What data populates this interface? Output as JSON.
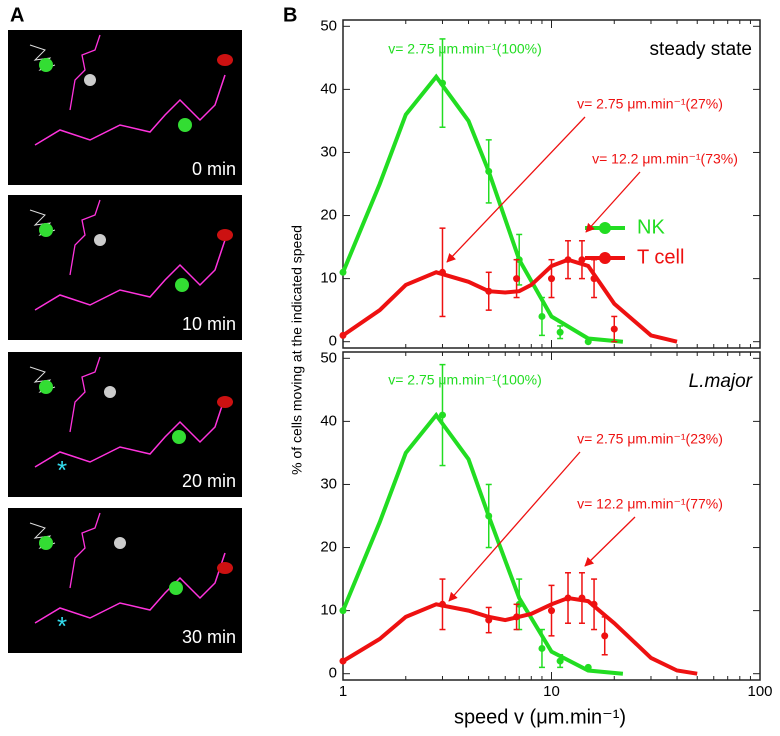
{
  "figure": {
    "panel_labels": [
      "A",
      "B"
    ],
    "xlabel": "speed v (μm.min⁻¹)",
    "ylabel": "% of cells moving at the indicated speed"
  },
  "panel_a": {
    "time_labels": [
      "0 min",
      "10 min",
      "20 min",
      "30 min"
    ]
  },
  "chart_data": [
    {
      "type": "line",
      "label": "steady state",
      "label_italic": false,
      "legend": "right",
      "log_x": true,
      "show_xtick_labels": false,
      "xlim": [
        1,
        100
      ],
      "xticks": [
        1,
        10,
        100
      ],
      "ylim": [
        -1,
        51
      ],
      "yticks": [
        0,
        10,
        20,
        30,
        40,
        50
      ],
      "series": [
        {
          "name": "NK",
          "color": "#22dd22",
          "x": [
            1,
            3,
            5,
            7,
            9,
            11,
            15
          ],
          "values": [
            11,
            41,
            27,
            13,
            4,
            1.5,
            0
          ],
          "errors": [
            0,
            7,
            5,
            4,
            3,
            1,
            0
          ],
          "fit_x": [
            1,
            1.5,
            2,
            2.8,
            4,
            5,
            7,
            10,
            15,
            22
          ],
          "fit_values": [
            11,
            25,
            36,
            42,
            35,
            27,
            13,
            4,
            0.5,
            0
          ]
        },
        {
          "name": "T cell",
          "color": "#ee1111",
          "x": [
            1,
            3,
            5,
            6.8,
            10,
            12,
            14,
            16,
            20
          ],
          "values": [
            1,
            11,
            8,
            10,
            10,
            13,
            13,
            10,
            2
          ],
          "errors": [
            0,
            7,
            3,
            3,
            3,
            3,
            3,
            3,
            2
          ],
          "fit_x": [
            1,
            1.5,
            2,
            2.8,
            4,
            5,
            6,
            7,
            8,
            10,
            12,
            15,
            20,
            30,
            40
          ],
          "fit_values": [
            1,
            5,
            9,
            11,
            9.5,
            8,
            7.8,
            8,
            9,
            12,
            13,
            12,
            6,
            1,
            0
          ]
        }
      ],
      "annotations": [
        {
          "text": "v= 2.75 μm.min⁻¹(100%)",
          "color": "#22dd22"
        },
        {
          "text": "v= 2.75 μm.min⁻¹(27%)",
          "color": "#ee1111"
        },
        {
          "text": "v= 12.2 μm.min⁻¹(73%)",
          "color": "#ee1111"
        }
      ]
    },
    {
      "type": "line",
      "label": "L.major",
      "label_italic": true,
      "log_x": true,
      "show_xtick_labels": true,
      "xlim": [
        1,
        100
      ],
      "xticks": [
        1,
        10,
        100
      ],
      "ylim": [
        -1,
        51
      ],
      "yticks": [
        0,
        10,
        20,
        30,
        40,
        50
      ],
      "series": [
        {
          "name": "NK",
          "color": "#22dd22",
          "x": [
            1,
            3,
            5,
            7,
            9,
            11,
            15
          ],
          "values": [
            10,
            41,
            25,
            11,
            4,
            2,
            1
          ],
          "errors": [
            0,
            8,
            5,
            4,
            3,
            1,
            0
          ],
          "fit_x": [
            1,
            1.5,
            2,
            2.8,
            4,
            5,
            7,
            10,
            15,
            22
          ],
          "fit_values": [
            10,
            24,
            35,
            41,
            34,
            25,
            12,
            3.5,
            0.5,
            0
          ]
        },
        {
          "name": "T cell",
          "color": "#ee1111",
          "x": [
            1,
            3,
            5,
            6.8,
            10,
            12,
            14,
            16,
            18
          ],
          "values": [
            2,
            11,
            8.5,
            9,
            10,
            12,
            12,
            11,
            6
          ],
          "errors": [
            0,
            4,
            2,
            2,
            4,
            4,
            4,
            4,
            3
          ],
          "fit_x": [
            1,
            1.5,
            2,
            2.8,
            4,
            5,
            6,
            8,
            10,
            12,
            15,
            20,
            30,
            40,
            50
          ],
          "fit_values": [
            2,
            5.5,
            9,
            11,
            10,
            9,
            8.5,
            9.5,
            11,
            12,
            11.5,
            8,
            2.5,
            0.5,
            0
          ]
        }
      ],
      "annotations": [
        {
          "text": "v= 2.75 μm.min⁻¹(100%)",
          "color": "#22dd22"
        },
        {
          "text": "v= 2.75 μm.min⁻¹(23%)",
          "color": "#ee1111"
        },
        {
          "text": "v= 12.2 μm.min⁻¹(77%)",
          "color": "#ee1111"
        }
      ]
    }
  ]
}
